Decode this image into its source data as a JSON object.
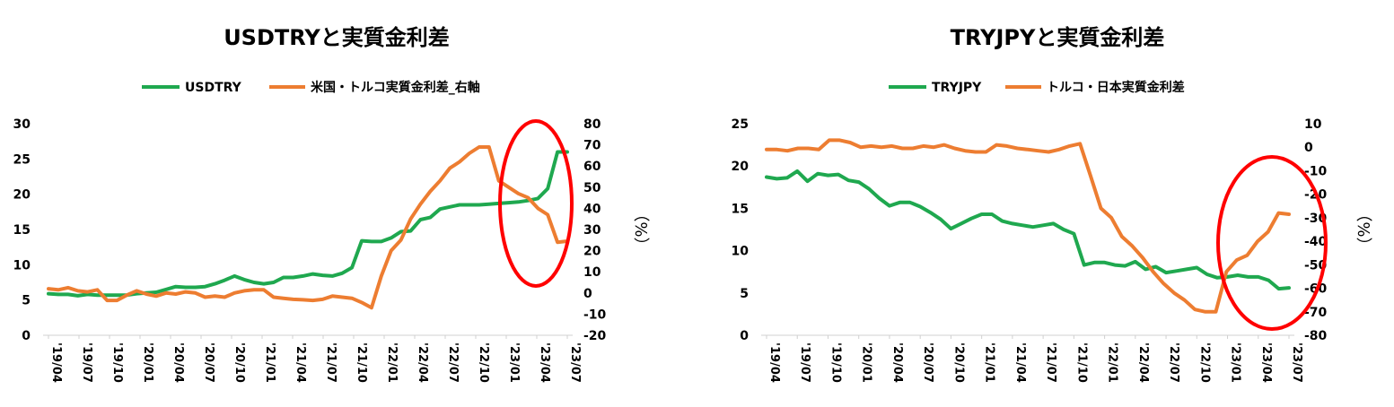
{
  "chart_data": [
    {
      "type": "line",
      "title": "USDTRYと実質金利差",
      "x_tick_labels": [
        "'19/04",
        "'19/07",
        "'19/10",
        "'20/01",
        "'20/04",
        "'20/07",
        "'20/10",
        "'21/01",
        "'21/04",
        "'21/07",
        "'21/10",
        "'22/01",
        "'22/04",
        "'22/07",
        "'22/10",
        "'23/01",
        "'23/04",
        "'23/07"
      ],
      "legend_position": "top",
      "grid": false,
      "y_left": {
        "min": 0,
        "max": 30,
        "ticks": [
          0,
          5,
          10,
          15,
          20,
          25,
          30
        ]
      },
      "y_right": {
        "min": -20,
        "max": 80,
        "ticks": [
          -20,
          -10,
          0,
          10,
          20,
          30,
          40,
          50,
          60,
          70,
          80
        ],
        "label": "（%）"
      },
      "series": [
        {
          "name": "USDTRY",
          "axis": "left",
          "color": "#1fa84f",
          "values": [
            5.9,
            5.8,
            5.8,
            5.6,
            5.8,
            5.7,
            5.7,
            5.7,
            5.7,
            5.9,
            6.0,
            6.1,
            6.5,
            6.9,
            6.8,
            6.8,
            6.9,
            7.3,
            7.8,
            8.4,
            7.9,
            7.5,
            7.3,
            7.5,
            8.2,
            8.2,
            8.4,
            8.7,
            8.5,
            8.4,
            8.8,
            9.6,
            13.4,
            13.3,
            13.3,
            13.8,
            14.7,
            14.8,
            16.4,
            16.7,
            17.9,
            18.2,
            18.5,
            18.5,
            18.5,
            18.6,
            18.7,
            18.8,
            18.9,
            19.1,
            19.4,
            20.8,
            26.0,
            26.0
          ]
        },
        {
          "name": "米国・トルコ実質金利差_右軸",
          "axis": "right",
          "color": "#ed7d31",
          "values": [
            2,
            1.5,
            2.5,
            1,
            0.5,
            1.5,
            -3.5,
            -3.5,
            -1,
            1,
            -0.5,
            -1.5,
            0,
            -0.5,
            0.5,
            0,
            -2,
            -1.5,
            -2,
            0,
            1,
            1.5,
            1.5,
            -2,
            -2.5,
            -3,
            -3.2,
            -3.5,
            -3,
            -1.5,
            -2,
            -2.5,
            -4.5,
            -7,
            8,
            20,
            25,
            35,
            42,
            48,
            53,
            59,
            62,
            66,
            69,
            69,
            53,
            50,
            47,
            45,
            40,
            37,
            24,
            24.5
          ]
        }
      ]
    },
    {
      "type": "line",
      "title": "TRYJPYと実質金利差",
      "x_tick_labels": [
        "'19/04",
        "'19/07",
        "'19/10",
        "'20/01",
        "'20/04",
        "'20/07",
        "'20/10",
        "'21/01",
        "'21/04",
        "'21/07",
        "'21/10",
        "'22/01",
        "'22/04",
        "'22/07",
        "'22/10",
        "'23/01",
        "'23/04",
        "'23/07"
      ],
      "legend_position": "top",
      "grid": false,
      "y_left": {
        "min": 0,
        "max": 25,
        "ticks": [
          0,
          5,
          10,
          15,
          20,
          25
        ]
      },
      "y_right": {
        "min": -80,
        "max": 10,
        "ticks": [
          -80,
          -70,
          -60,
          -50,
          -40,
          -30,
          -20,
          -10,
          0,
          10
        ],
        "label": "（%）"
      },
      "series": [
        {
          "name": "TRYJPY",
          "axis": "left",
          "color": "#1fa84f",
          "values": [
            18.7,
            18.5,
            18.6,
            19.4,
            18.2,
            19.1,
            18.9,
            19.0,
            18.3,
            18.1,
            17.3,
            16.2,
            15.3,
            15.7,
            15.7,
            15.2,
            14.5,
            13.7,
            12.6,
            13.2,
            13.8,
            14.3,
            14.3,
            13.5,
            13.2,
            13.0,
            12.8,
            13.0,
            13.2,
            12.5,
            12.0,
            8.3,
            8.6,
            8.6,
            8.3,
            8.2,
            8.7,
            7.8,
            8.1,
            7.4,
            7.6,
            7.8,
            8.0,
            7.2,
            6.8,
            6.9,
            7.1,
            6.9,
            6.9,
            6.5,
            5.5,
            5.6
          ]
        },
        {
          "name": "トルコ・日本実質金利差",
          "axis": "right",
          "color": "#ed7d31",
          "values": [
            -1,
            -1,
            -1.5,
            -0.5,
            -0.5,
            -1,
            3,
            3,
            2,
            0,
            0.5,
            0,
            0.5,
            -0.5,
            -0.5,
            0.5,
            0,
            1,
            -0.5,
            -1.5,
            -2,
            -2,
            1,
            0.5,
            -0.5,
            -1,
            -1.5,
            -2,
            -1,
            0.5,
            1.5,
            -12,
            -26,
            -30,
            -38,
            -42,
            -47,
            -53,
            -58,
            -62,
            -65,
            -69,
            -70,
            -70,
            -53,
            -48,
            -46,
            -40,
            -36,
            -28,
            -28.5
          ]
        }
      ]
    }
  ]
}
